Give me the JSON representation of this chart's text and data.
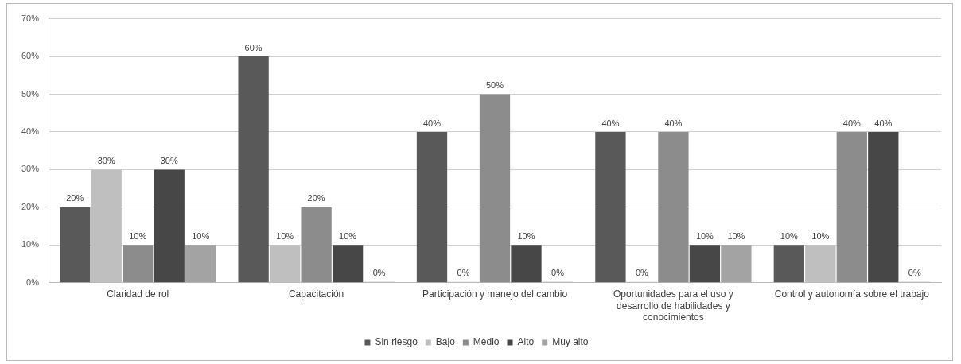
{
  "chart_data": {
    "type": "bar",
    "categories": [
      "Claridad de rol",
      "Capacitación",
      "Participación y manejo del cambio",
      "Oportunidades para el uso y desarrollo de habilidades y conocimientos",
      "Control y autonomía sobre el trabajo"
    ],
    "series": [
      {
        "name": "Sin riesgo",
        "color": "#595959",
        "values": [
          20,
          60,
          40,
          40,
          10
        ],
        "value_labels": [
          "20%",
          "60%",
          "40%",
          "40%",
          "10%"
        ]
      },
      {
        "name": "Bajo",
        "color": "#bfbfbf",
        "values": [
          30,
          10,
          0,
          0,
          10
        ],
        "value_labels": [
          "30%",
          "10%",
          "0%",
          "0%",
          "10%"
        ]
      },
      {
        "name": "Medio",
        "color": "#8c8c8c",
        "values": [
          10,
          20,
          50,
          40,
          40
        ],
        "value_labels": [
          "10%",
          "20%",
          "50%",
          "40%",
          "40%"
        ]
      },
      {
        "name": "Alto",
        "color": "#474747",
        "values": [
          30,
          10,
          10,
          10,
          40
        ],
        "value_labels": [
          "30%",
          "10%",
          "10%",
          "10%",
          "40%"
        ]
      },
      {
        "name": "Muy alto",
        "color": "#a3a3a3",
        "values": [
          10,
          0,
          0,
          10,
          0
        ],
        "value_labels": [
          "10%",
          "0%",
          "0%",
          "10%",
          "0%"
        ]
      }
    ],
    "ylim": [
      0,
      70
    ],
    "yticks": [
      {
        "value": 0,
        "label": "0%"
      },
      {
        "value": 10,
        "label": "10%"
      },
      {
        "value": 20,
        "label": "20%"
      },
      {
        "value": 30,
        "label": "30%"
      },
      {
        "value": 40,
        "label": "40%"
      },
      {
        "value": 50,
        "label": "50%"
      },
      {
        "value": 60,
        "label": "60%"
      },
      {
        "value": 70,
        "label": "70%"
      }
    ],
    "grid": "y",
    "legend": "bottom"
  }
}
